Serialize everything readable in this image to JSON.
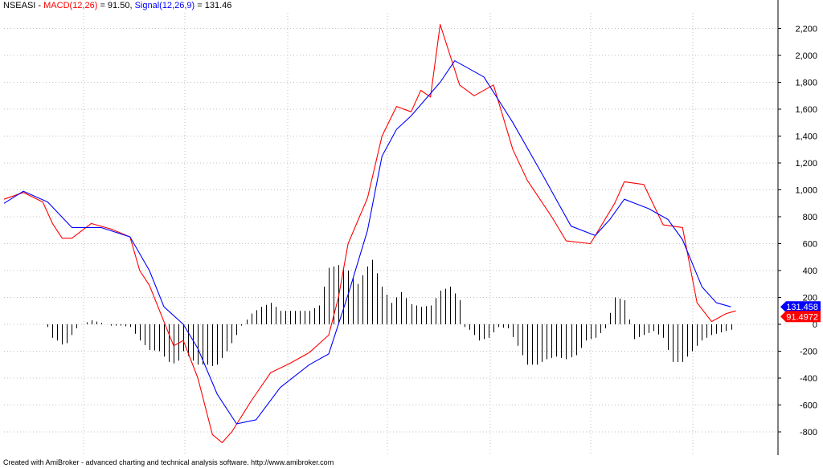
{
  "header": {
    "symbol": "NSEASI",
    "sep1": " - ",
    "macd_label": "MACD(12,26)",
    "macd_eq": " = 91.50, ",
    "signal_label": "Signal(12,26,9)",
    "signal_eq": " = 131.46"
  },
  "footer": {
    "credit": "Created with AmiBroker - advanced charting and technical analysis software. http://www.amibroker.com"
  },
  "colors": {
    "macd": "#ff0000",
    "signal": "#0000ff",
    "histogram": "#000000",
    "grid": "#c0c0c0",
    "background": "#ffffff"
  },
  "chart_data": {
    "type": "line",
    "title": "NSEASI - MACD(12,26) = 91.50, Signal(12,26,9) = 131.46",
    "xlabel": "",
    "ylabel": "",
    "ylim": [
      -900,
      2300
    ],
    "y_ticks": [
      -800,
      -600,
      -400,
      -200,
      0,
      200,
      400,
      600,
      800,
      1000,
      1200,
      1400,
      1600,
      1800,
      2000,
      2200
    ],
    "y_tick_labels": [
      "-800",
      "-600",
      "-400",
      "-200",
      "0",
      "200",
      "400",
      "600",
      "800",
      "1,000",
      "1,200",
      "1,400",
      "1,600",
      "1,800",
      "2,000",
      "2,200"
    ],
    "grid": true,
    "bars": 150,
    "series": [
      {
        "name": "MACD(12,26)",
        "kind": "line",
        "points": [
          [
            0,
            930
          ],
          [
            4,
            980
          ],
          [
            8,
            910
          ],
          [
            10,
            750
          ],
          [
            12,
            640
          ],
          [
            14,
            640
          ],
          [
            18,
            750
          ],
          [
            22,
            710
          ],
          [
            26,
            650
          ],
          [
            28,
            400
          ],
          [
            30,
            290
          ],
          [
            34,
            -70
          ],
          [
            35,
            -160
          ],
          [
            37,
            -120
          ],
          [
            40,
            -400
          ],
          [
            43,
            -820
          ],
          [
            45,
            -880
          ],
          [
            47,
            -800
          ],
          [
            51,
            -570
          ],
          [
            55,
            -360
          ],
          [
            59,
            -290
          ],
          [
            63,
            -210
          ],
          [
            67,
            -80
          ],
          [
            69,
            200
          ],
          [
            71,
            600
          ],
          [
            75,
            940
          ],
          [
            78,
            1400
          ],
          [
            81,
            1620
          ],
          [
            84,
            1580
          ],
          [
            86,
            1740
          ],
          [
            88,
            1690
          ],
          [
            90,
            2230
          ],
          [
            94,
            1780
          ],
          [
            97,
            1700
          ],
          [
            101,
            1780
          ],
          [
            105,
            1300
          ],
          [
            108,
            1070
          ],
          [
            113,
            800
          ],
          [
            116,
            620
          ],
          [
            121,
            600
          ],
          [
            126,
            900
          ],
          [
            128,
            1060
          ],
          [
            132,
            1040
          ],
          [
            136,
            740
          ],
          [
            140,
            720
          ],
          [
            143,
            160
          ],
          [
            146,
            20
          ],
          [
            149,
            80
          ],
          [
            151,
            100
          ]
        ]
      },
      {
        "name": "Signal(12,26,9)",
        "kind": "line",
        "points": [
          [
            0,
            900
          ],
          [
            4,
            990
          ],
          [
            9,
            910
          ],
          [
            14,
            720
          ],
          [
            20,
            720
          ],
          [
            26,
            650
          ],
          [
            30,
            400
          ],
          [
            33,
            130
          ],
          [
            37,
            0
          ],
          [
            40,
            -180
          ],
          [
            44,
            -520
          ],
          [
            48,
            -740
          ],
          [
            52,
            -710
          ],
          [
            57,
            -470
          ],
          [
            63,
            -300
          ],
          [
            67,
            -220
          ],
          [
            71,
            220
          ],
          [
            75,
            700
          ],
          [
            78,
            1250
          ],
          [
            81,
            1450
          ],
          [
            84,
            1550
          ],
          [
            90,
            1800
          ],
          [
            93,
            1960
          ],
          [
            99,
            1840
          ],
          [
            105,
            1500
          ],
          [
            111,
            1120
          ],
          [
            117,
            730
          ],
          [
            122,
            660
          ],
          [
            125,
            780
          ],
          [
            128,
            930
          ],
          [
            133,
            860
          ],
          [
            137,
            780
          ],
          [
            140,
            630
          ],
          [
            144,
            280
          ],
          [
            147,
            160
          ],
          [
            150,
            130
          ]
        ]
      },
      {
        "name": "Histogram",
        "kind": "histogram",
        "points": [
          [
            0,
            0
          ],
          [
            8,
            0
          ],
          [
            9,
            -20
          ],
          [
            10,
            -100
          ],
          [
            11,
            -120
          ],
          [
            12,
            -150
          ],
          [
            13,
            -140
          ],
          [
            14,
            -80
          ],
          [
            15,
            -30
          ],
          [
            16,
            0
          ],
          [
            18,
            30
          ],
          [
            20,
            10
          ],
          [
            22,
            -10
          ],
          [
            24,
            -10
          ],
          [
            26,
            -20
          ],
          [
            28,
            -120
          ],
          [
            30,
            -190
          ],
          [
            32,
            -200
          ],
          [
            34,
            -280
          ],
          [
            35,
            -290
          ],
          [
            36,
            -270
          ],
          [
            37,
            -200
          ],
          [
            39,
            -270
          ],
          [
            40,
            -300
          ],
          [
            42,
            -300
          ],
          [
            43,
            -310
          ],
          [
            44,
            -300
          ],
          [
            46,
            -200
          ],
          [
            48,
            -80
          ],
          [
            49,
            -10
          ],
          [
            51,
            80
          ],
          [
            53,
            130
          ],
          [
            55,
            160
          ],
          [
            57,
            100
          ],
          [
            60,
            100
          ],
          [
            63,
            100
          ],
          [
            65,
            140
          ],
          [
            67,
            420
          ],
          [
            69,
            440
          ],
          [
            71,
            400
          ],
          [
            73,
            300
          ],
          [
            75,
            430
          ],
          [
            76,
            480
          ],
          [
            78,
            280
          ],
          [
            80,
            160
          ],
          [
            82,
            240
          ],
          [
            84,
            150
          ],
          [
            86,
            130
          ],
          [
            88,
            140
          ],
          [
            90,
            250
          ],
          [
            92,
            280
          ],
          [
            94,
            180
          ],
          [
            95,
            -20
          ],
          [
            96,
            -40
          ],
          [
            98,
            -120
          ],
          [
            100,
            -100
          ],
          [
            102,
            -20
          ],
          [
            104,
            -30
          ],
          [
            106,
            -160
          ],
          [
            108,
            -300
          ],
          [
            110,
            -300
          ],
          [
            112,
            -260
          ],
          [
            114,
            -240
          ],
          [
            116,
            -260
          ],
          [
            118,
            -230
          ],
          [
            120,
            -120
          ],
          [
            122,
            -100
          ],
          [
            124,
            -30
          ],
          [
            126,
            200
          ],
          [
            128,
            180
          ],
          [
            130,
            -110
          ],
          [
            132,
            -80
          ],
          [
            134,
            -50
          ],
          [
            136,
            -100
          ],
          [
            138,
            -280
          ],
          [
            140,
            -280
          ],
          [
            142,
            -200
          ],
          [
            144,
            -120
          ],
          [
            146,
            -80
          ],
          [
            148,
            -60
          ],
          [
            150,
            -40
          ]
        ]
      }
    ],
    "value_labels": [
      {
        "series": "Signal(12,26,9)",
        "text": "131.458",
        "bg": "#0000ff",
        "fg": "#ffffff"
      },
      {
        "series": "MACD(12,26)",
        "text": "91.4972",
        "bg": "#ff0000",
        "fg": "#ffffff"
      }
    ]
  }
}
